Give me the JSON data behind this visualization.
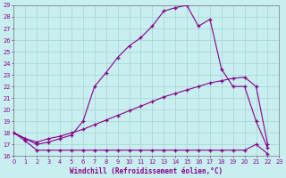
{
  "xlabel": "Windchill (Refroidissement éolien,°C)",
  "bg_color": "#c8eef0",
  "line_color": "#880088",
  "grid_color": "#a8d8d8",
  "xlim": [
    0,
    23
  ],
  "ylim": [
    16,
    29
  ],
  "yticks": [
    16,
    17,
    18,
    19,
    20,
    21,
    22,
    23,
    24,
    25,
    26,
    27,
    28,
    29
  ],
  "xticks": [
    0,
    1,
    2,
    3,
    4,
    5,
    6,
    7,
    8,
    9,
    10,
    11,
    12,
    13,
    14,
    15,
    16,
    17,
    18,
    19,
    20,
    21,
    22,
    23
  ],
  "curve1": {
    "x": [
      0,
      1,
      2,
      3,
      4,
      5,
      6,
      7,
      8,
      9,
      10,
      11,
      12,
      13,
      14,
      15,
      16,
      17,
      18,
      19,
      20,
      21,
      22
    ],
    "y": [
      18.0,
      17.5,
      17.0,
      17.2,
      17.5,
      17.8,
      19.0,
      22.0,
      23.2,
      24.5,
      25.5,
      26.2,
      27.2,
      28.5,
      28.8,
      29.0,
      27.2,
      27.8,
      23.5,
      22.0,
      22.0,
      19.0,
      16.7
    ]
  },
  "curve2": {
    "x": [
      0,
      1,
      2,
      3,
      4,
      5,
      6,
      7,
      8,
      9,
      10,
      11,
      12,
      13,
      14,
      15,
      16,
      17,
      18,
      19,
      20,
      21,
      22
    ],
    "y": [
      18.0,
      17.5,
      17.2,
      17.5,
      17.7,
      18.0,
      18.3,
      18.7,
      19.1,
      19.5,
      19.9,
      20.3,
      20.7,
      21.1,
      21.4,
      21.7,
      22.0,
      22.3,
      22.5,
      22.7,
      22.8,
      22.0,
      17.0
    ]
  },
  "curve3": {
    "x": [
      0,
      1,
      2,
      3,
      4,
      5,
      6,
      7,
      8,
      9,
      10,
      11,
      12,
      13,
      14,
      15,
      16,
      17,
      18,
      19,
      20,
      21,
      22
    ],
    "y": [
      18.0,
      17.3,
      16.5,
      16.5,
      16.5,
      16.5,
      16.5,
      16.5,
      16.5,
      16.5,
      16.5,
      16.5,
      16.5,
      16.5,
      16.5,
      16.5,
      16.5,
      16.5,
      16.5,
      16.5,
      16.5,
      17.0,
      16.2
    ]
  }
}
